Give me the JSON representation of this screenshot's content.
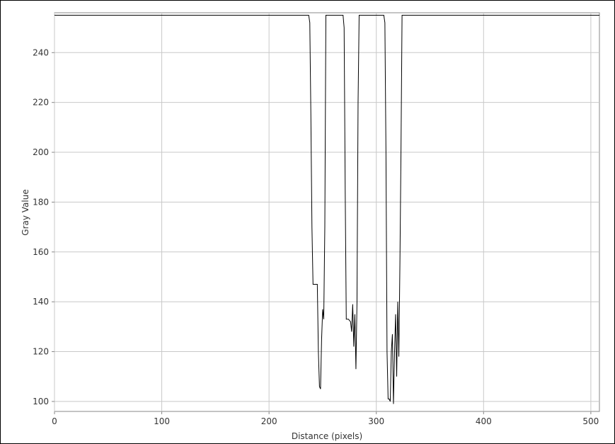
{
  "chart_data": {
    "type": "line",
    "title": "",
    "xlabel": "Distance (pixels)",
    "ylabel": "Gray Value",
    "xlim": [
      0,
      508
    ],
    "ylim": [
      96,
      256
    ],
    "grid": true,
    "xticks": [
      0,
      100,
      200,
      300,
      400,
      500
    ],
    "yticks": [
      100,
      120,
      140,
      160,
      180,
      200,
      220,
      240
    ],
    "series": [
      {
        "color": "#000000",
        "points": [
          [
            0,
            255
          ],
          [
            237,
            255
          ],
          [
            238,
            252
          ],
          [
            239,
            215
          ],
          [
            240,
            170
          ],
          [
            241,
            147
          ],
          [
            243,
            147
          ],
          [
            245,
            147
          ],
          [
            246,
            120
          ],
          [
            247,
            106
          ],
          [
            248,
            105
          ],
          [
            249,
            125
          ],
          [
            250,
            137
          ],
          [
            251,
            133
          ],
          [
            252,
            170
          ],
          [
            253,
            255
          ],
          [
            269,
            255
          ],
          [
            270,
            250
          ],
          [
            271,
            185
          ],
          [
            272,
            133
          ],
          [
            274,
            133
          ],
          [
            276,
            132
          ],
          [
            277,
            128
          ],
          [
            278,
            139
          ],
          [
            279,
            122
          ],
          [
            280,
            135
          ],
          [
            281,
            113
          ],
          [
            282,
            140
          ],
          [
            283,
            220
          ],
          [
            284,
            255
          ],
          [
            306,
            255
          ],
          [
            307,
            255
          ],
          [
            308,
            252
          ],
          [
            309,
            200
          ],
          [
            310,
            120
          ],
          [
            311,
            101
          ],
          [
            312,
            101
          ],
          [
            313,
            100
          ],
          [
            314,
            120
          ],
          [
            315,
            127
          ],
          [
            316,
            99
          ],
          [
            317,
            120
          ],
          [
            318,
            135
          ],
          [
            319,
            110
          ],
          [
            320,
            140
          ],
          [
            321,
            118
          ],
          [
            322,
            155
          ],
          [
            323,
            200
          ],
          [
            324,
            255
          ],
          [
            508,
            255
          ]
        ]
      }
    ]
  }
}
